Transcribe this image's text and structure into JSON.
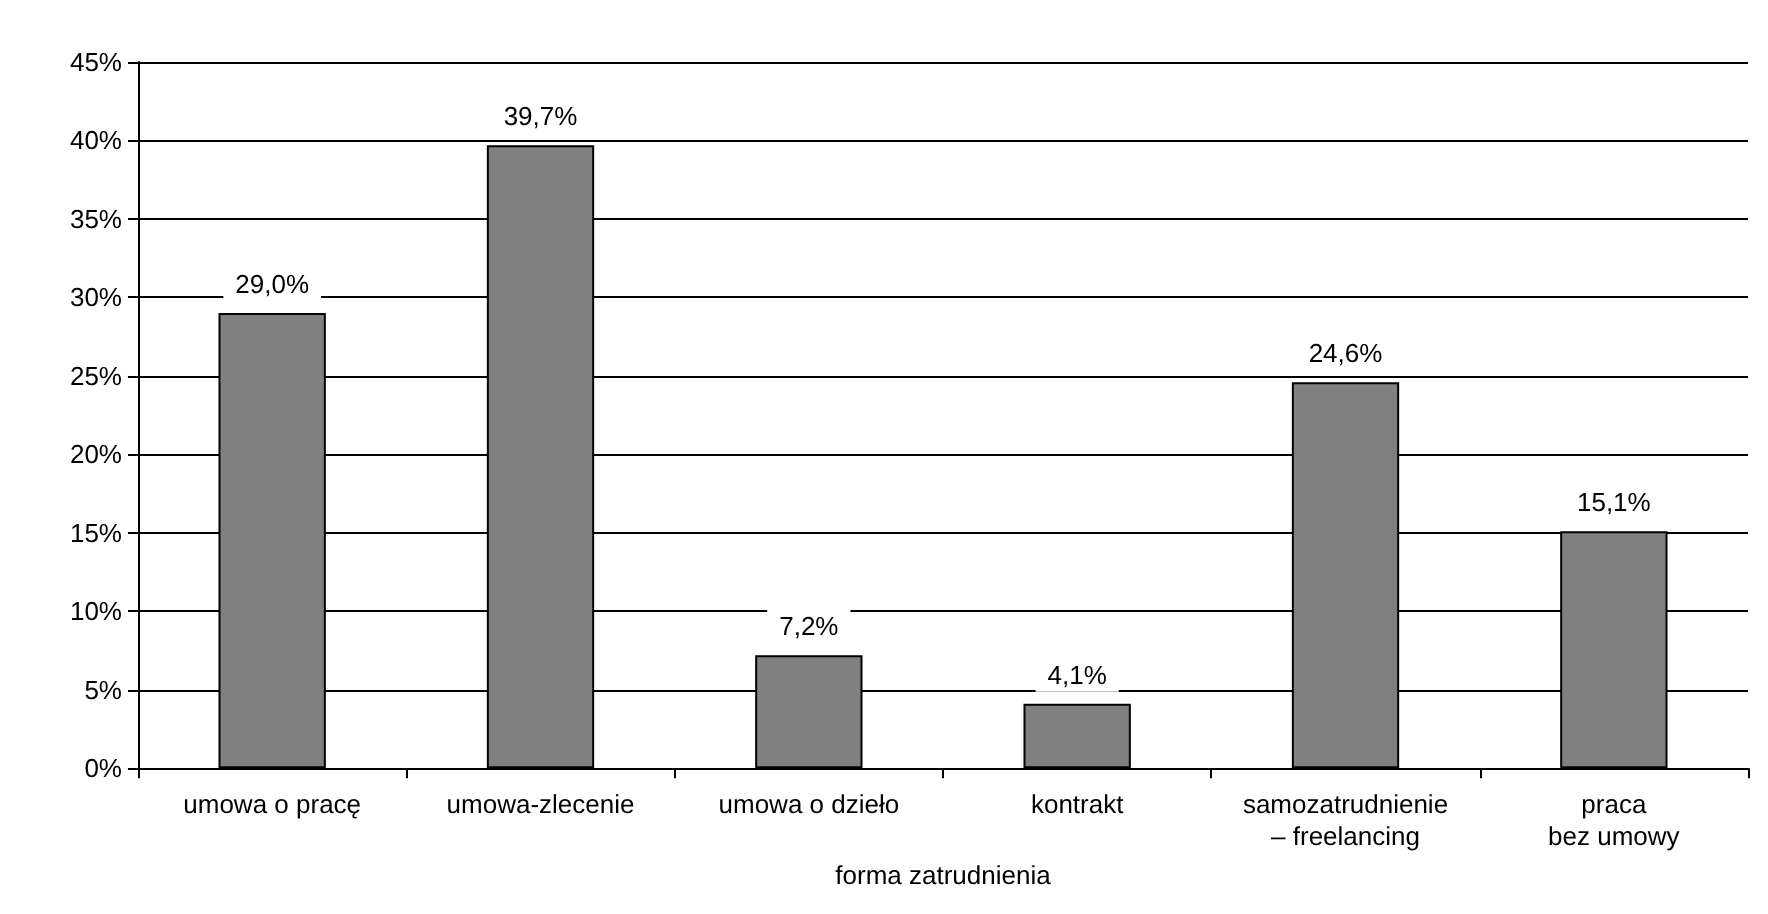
{
  "chart_data": {
    "type": "bar",
    "xlabel": "forma zatrudnienia",
    "categories": [
      "umowa o pracę",
      "umowa-zlecenie",
      "umowa o dzieło",
      "kontrakt",
      "samozatrudnienie\n– freelancing",
      "praca\nbez umowy"
    ],
    "values": [
      29.0,
      39.7,
      7.2,
      4.1,
      24.6,
      15.1
    ],
    "value_labels": [
      "29,0%",
      "39,7%",
      "7,2%",
      "4,1%",
      "24,6%",
      "15,1%"
    ],
    "color": "#808080",
    "ylim": [
      0,
      45
    ],
    "yticks": [
      {
        "value": 0,
        "label": "0%"
      },
      {
        "value": 5,
        "label": "5%"
      },
      {
        "value": 10,
        "label": "10%"
      },
      {
        "value": 15,
        "label": "15%"
      },
      {
        "value": 20,
        "label": "20%"
      },
      {
        "value": 25,
        "label": "25%"
      },
      {
        "value": 30,
        "label": "30%"
      },
      {
        "value": 35,
        "label": "35%"
      },
      {
        "value": 40,
        "label": "40%"
      },
      {
        "value": 45,
        "label": "45%"
      }
    ],
    "grid": "y"
  }
}
